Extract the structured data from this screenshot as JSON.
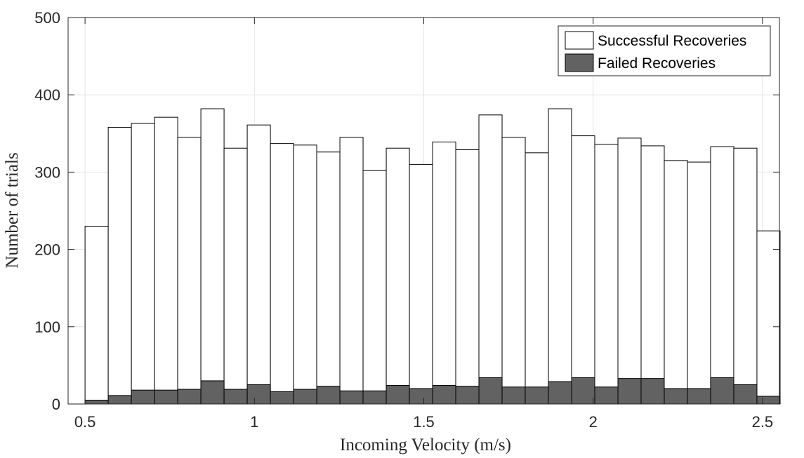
{
  "chart_data": {
    "type": "bar",
    "layout": "overlaid-histogram",
    "xlabel": "Incoming Velocity (m/s)",
    "ylabel": "Number of trials",
    "xlim": [
      0.45,
      2.55
    ],
    "ylim": [
      0,
      500
    ],
    "xticks": [
      0.5,
      1,
      1.5,
      2,
      2.5
    ],
    "xtick_labels": [
      "0.5",
      "1",
      "1.5",
      "2",
      "2.5"
    ],
    "yticks": [
      0,
      100,
      200,
      300,
      400,
      500
    ],
    "ytick_labels": [
      "0",
      "100",
      "200",
      "300",
      "400",
      "500"
    ],
    "grid": true,
    "legend_position": "top-right",
    "bin_edges": [
      0.5,
      0.5684,
      0.6368,
      0.7052,
      0.7736,
      0.842,
      0.9104,
      0.9788,
      1.0472,
      1.1156,
      1.184,
      1.2524,
      1.3208,
      1.3892,
      1.4576,
      1.526,
      1.5944,
      1.6628,
      1.7312,
      1.7996,
      1.868,
      1.9364,
      2.0048,
      2.0732,
      2.1416,
      2.21,
      2.2784,
      2.3468,
      2.4152,
      2.4836,
      2.552
    ],
    "series": [
      {
        "name": "Successful Recoveries",
        "color": "#ffffff",
        "edge_color": "#000000",
        "values": [
          230,
          358,
          363,
          371,
          345,
          382,
          331,
          361,
          337,
          335,
          326,
          345,
          302,
          331,
          310,
          339,
          329,
          374,
          345,
          325,
          382,
          347,
          336,
          344,
          334,
          315,
          313,
          333,
          331,
          224
        ]
      },
      {
        "name": "Failed Recoveries",
        "color": "#626262",
        "edge_color": "#000000",
        "values": [
          5,
          11,
          18,
          18,
          19,
          30,
          19,
          25,
          16,
          19,
          23,
          17,
          17,
          24,
          20,
          24,
          23,
          34,
          22,
          22,
          29,
          34,
          22,
          33,
          33,
          20,
          20,
          34,
          25,
          10
        ]
      }
    ]
  }
}
